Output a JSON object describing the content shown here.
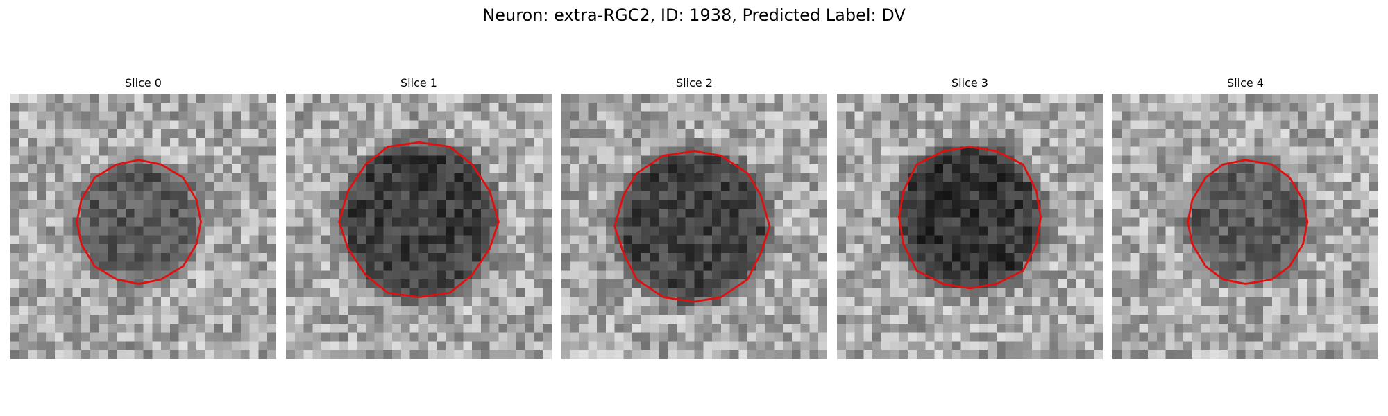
{
  "figure": {
    "title": "Neuron: extra-RGC2, ID: 1938, Predicted Label: DV"
  },
  "slices": [
    {
      "label": "Slice 0",
      "cell_darkness": 0.45
    },
    {
      "label": "Slice 1",
      "cell_darkness": 0.75
    },
    {
      "label": "Slice 2",
      "cell_darkness": 0.7
    },
    {
      "label": "Slice 3",
      "cell_darkness": 0.85
    },
    {
      "label": "Slice 4",
      "cell_darkness": 0.4
    }
  ],
  "colors": {
    "contour": "#e01010",
    "background": "#ffffff"
  }
}
